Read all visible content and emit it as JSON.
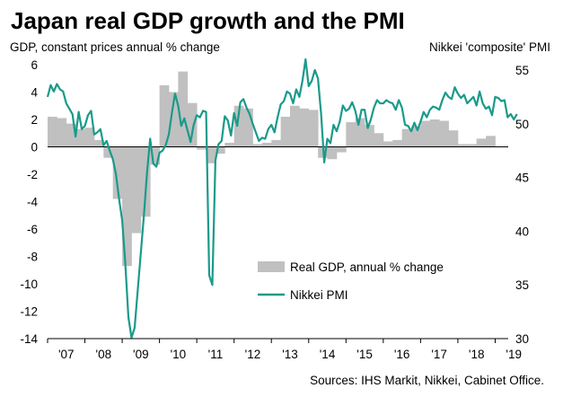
{
  "chart_data": {
    "type": "bar+line",
    "title": "Japan real GDP growth and the PMI",
    "ylabel_left": "GDP, constant prices annual  % change",
    "ylabel_right": "Nikkei 'composite' PMI",
    "source": "Sources: IHS Markit, Nikkei, Cabinet Office.",
    "x_tick_labels": [
      "'07",
      "'08",
      "'09",
      "'10",
      "'11",
      "'12",
      "'13",
      "'14",
      "'15",
      "'16",
      "'17",
      "'18",
      "'19"
    ],
    "x_range": [
      2007.0,
      2019.35
    ],
    "y_left_ticks": [
      "6",
      "4",
      "2",
      "0",
      "-2",
      "-4",
      "-6",
      "-8",
      "-10",
      "-12",
      "-14"
    ],
    "y_left_range": [
      -14,
      6
    ],
    "y_right_ticks": [
      "55",
      "50",
      "45",
      "40",
      "35",
      "30"
    ],
    "y_right_range": [
      30,
      55.5
    ],
    "legend": {
      "position": "bottom-right",
      "bars": "Real GDP, annual % change",
      "line": "Nikkei PMI"
    },
    "colors": {
      "bars": "#c0c0c0",
      "line": "#1a9a8a"
    },
    "series": [
      {
        "type": "bar",
        "axis": "left",
        "quarters_start": [
          2007.0,
          0.25
        ],
        "values": [
          2.2,
          2.1,
          1.7,
          1.3,
          1.4,
          0.5,
          -0.8,
          -3.8,
          -8.7,
          -6.3,
          -5.1,
          -1.3,
          4.5,
          4.0,
          5.5,
          3.2,
          -0.2,
          -1.2,
          -0.5,
          0.3,
          3.0,
          2.8,
          0.2,
          0.3,
          0.5,
          2.2,
          3.0,
          2.8,
          2.7,
          -0.8,
          -0.9,
          -0.4,
          1.8,
          2.1,
          1.6,
          1.0,
          0.4,
          0.5,
          1.3,
          1.5,
          1.9,
          2.0,
          1.9,
          1.2,
          0.2,
          0.2,
          0.6,
          0.8
        ]
      },
      {
        "name": "Nikkei PMI",
        "type": "line",
        "axis": "right",
        "months_start": [
          2007.0,
          0.0833333
        ],
        "values": [
          52.5,
          53.6,
          53.0,
          53.7,
          53.2,
          53.0,
          51.9,
          51.4,
          50.9,
          48.8,
          51.1,
          49.5,
          49.8,
          50.8,
          51.2,
          49.0,
          49.2,
          49.5,
          48.0,
          48.4,
          47.5,
          46.7,
          45.3,
          43.0,
          41.0,
          37.0,
          32.0,
          30.1,
          31.0,
          34.5,
          38.0,
          41.5,
          45.5,
          48.6,
          46.3,
          46.0,
          47.3,
          47.5,
          48.0,
          49.0,
          51.0,
          52.8,
          51.7,
          49.8,
          50.5,
          49.4,
          48.3,
          49.9,
          50.8,
          50.6,
          51.2,
          51.1,
          35.9,
          35.0,
          46.6,
          48.1,
          48.4,
          50.7,
          50.3,
          48.9,
          51.0,
          49.8,
          52.0,
          52.3,
          51.5,
          50.9,
          50.0,
          49.2,
          48.4,
          48.7,
          48.6,
          49.5,
          49.9,
          49.2,
          50.6,
          51.8,
          52.1,
          53.0,
          52.8,
          51.9,
          53.2,
          52.5,
          54.0,
          56.0,
          53.5,
          54.0,
          55.0,
          54.2,
          50.9,
          46.4,
          48.6,
          48.2,
          49.9,
          49.3,
          50.2,
          51.7,
          51.2,
          51.4,
          52.0,
          51.2,
          49.9,
          51.3,
          51.3,
          49.6,
          50.4,
          51.5,
          52.2,
          51.9,
          51.9,
          52.2,
          52.0,
          51.9,
          51.3,
          52.2,
          51.5,
          49.9,
          49.8,
          49.3,
          50.1,
          49.4,
          50.2,
          51.1,
          50.6,
          51.3,
          51.6,
          51.5,
          51.3,
          52.2,
          52.9,
          52.5,
          52.3,
          53.4,
          52.8,
          52.4,
          52.7,
          51.9,
          52.2,
          52.5,
          51.7,
          53.0,
          51.9,
          51.4,
          51.6,
          50.8,
          52.5,
          52.4,
          52.1,
          52.2,
          50.6,
          50.9,
          50.4,
          50.9
        ]
      }
    ]
  }
}
